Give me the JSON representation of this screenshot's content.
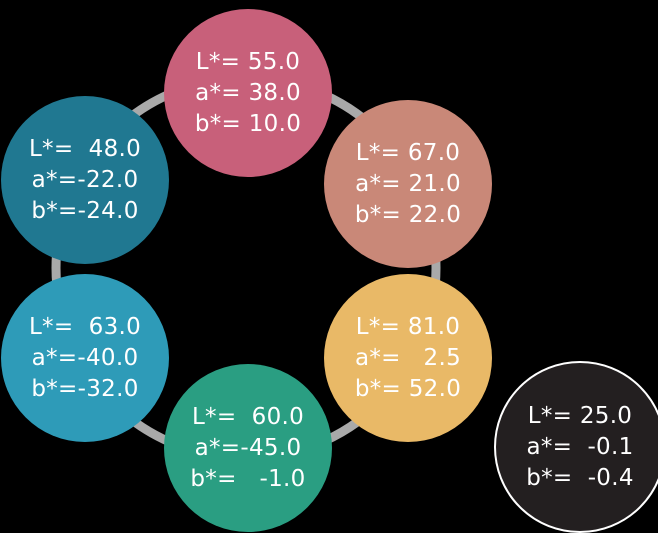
{
  "swatches": [
    {
      "L": "L*= 55.0",
      "a": "a*= 38.0",
      "b": "b*= 10.0",
      "color": "#c8607a"
    },
    {
      "L": "L*= 67.0",
      "a": "a*= 21.0",
      "b": "b*= 22.0",
      "color": "#c98878"
    },
    {
      "L": "L*= 81.0",
      "a": "a*=   2.5",
      "b": "b*= 52.0",
      "color": "#e9b967"
    },
    {
      "L": "L*=  60.0",
      "a": "a*=-45.0",
      "b": "b*=   -1.0",
      "color": "#2a9e82"
    },
    {
      "L": "L*=  63.0",
      "a": "a*=-40.0",
      "b": "b*=-32.0",
      "color": "#2e9bb8"
    },
    {
      "L": "L*=  48.0",
      "a": "a*=-22.0",
      "b": "b*=-24.0",
      "color": "#207891"
    },
    {
      "L": "L*= 25.0",
      "a": "a*=  -0.1",
      "b": "b*=  -0.4",
      "color": "#231f20"
    }
  ],
  "ring_color": "#a9a9a9"
}
